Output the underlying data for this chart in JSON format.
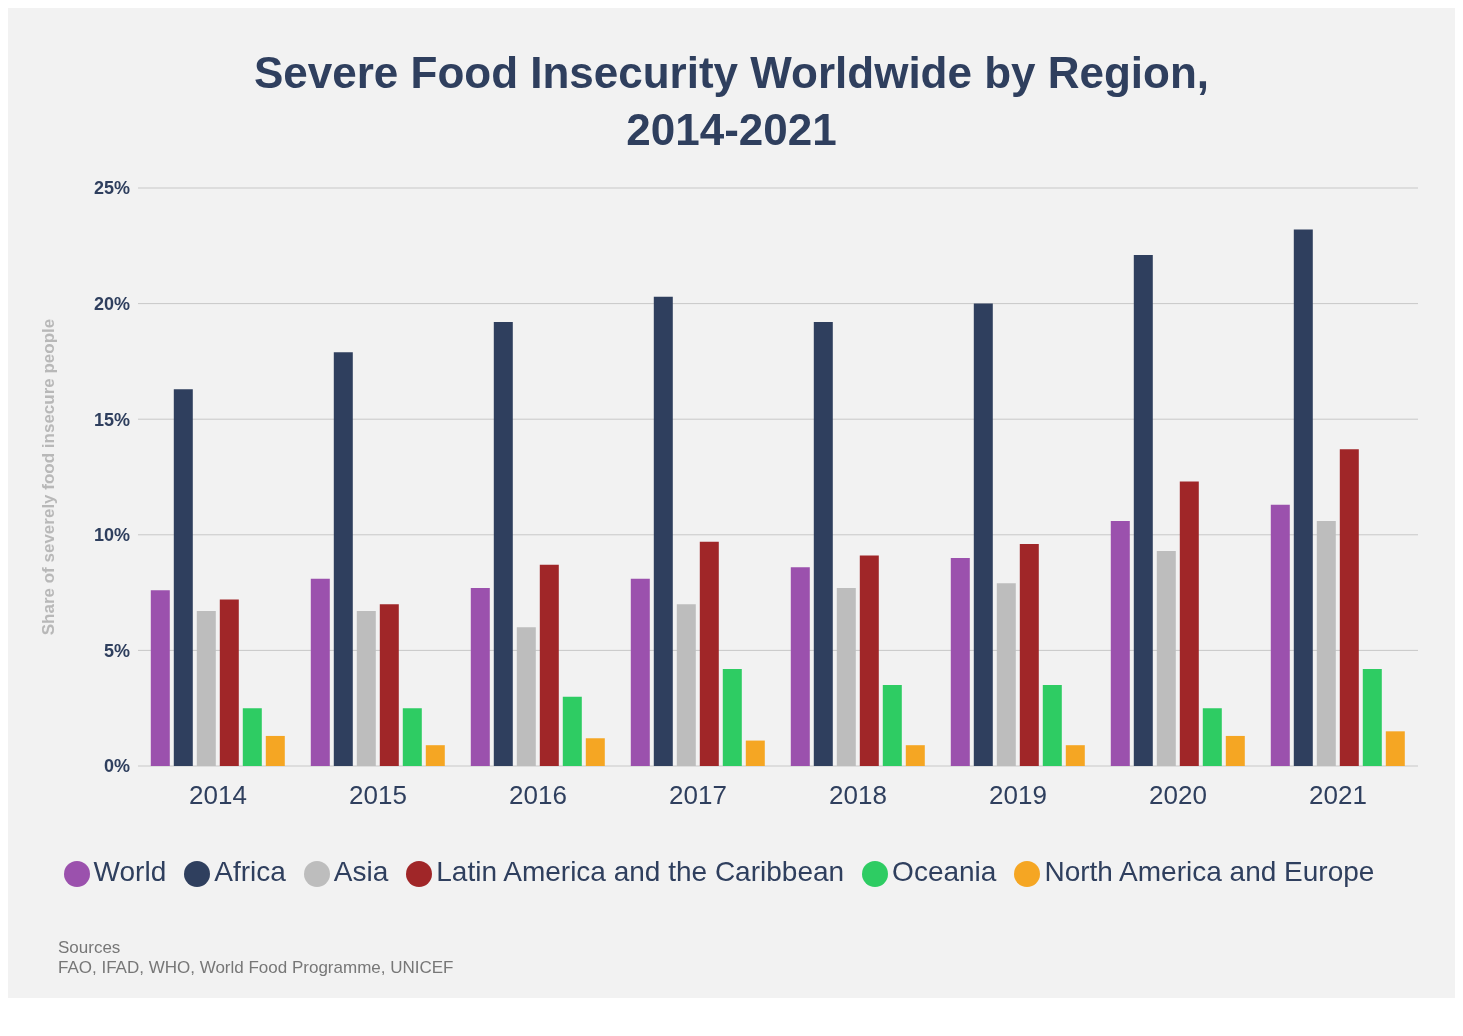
{
  "chart_data": {
    "type": "bar",
    "title": "Severe Food Insecurity Worldwide by Region, 2014-2021",
    "ylabel": "Share of severely food insecure people",
    "categories": [
      "2014",
      "2015",
      "2016",
      "2017",
      "2018",
      "2019",
      "2020",
      "2021"
    ],
    "series": [
      {
        "name": "World",
        "color": "#9b51ad",
        "values": [
          7.6,
          8.1,
          7.7,
          8.1,
          8.6,
          9.0,
          10.6,
          11.3
        ]
      },
      {
        "name": "Africa",
        "color": "#2f3f5e",
        "values": [
          16.3,
          17.9,
          19.2,
          20.3,
          19.2,
          20.0,
          22.1,
          23.2
        ]
      },
      {
        "name": "Asia",
        "color": "#bdbdbd",
        "values": [
          6.7,
          6.7,
          6.0,
          7.0,
          7.7,
          7.9,
          9.3,
          10.6
        ]
      },
      {
        "name": "Latin America and the Caribbean",
        "color": "#a02628",
        "values": [
          7.2,
          7.0,
          8.7,
          9.7,
          9.1,
          9.6,
          12.3,
          13.7
        ]
      },
      {
        "name": "Oceania",
        "color": "#2ecc63",
        "values": [
          2.5,
          2.5,
          3.0,
          4.2,
          3.5,
          3.5,
          2.5,
          4.2
        ]
      },
      {
        "name": "North America and Europe",
        "color": "#f5a623",
        "values": [
          1.3,
          0.9,
          1.2,
          1.1,
          0.9,
          0.9,
          1.3,
          1.5
        ]
      }
    ],
    "ylim": [
      0,
      25
    ],
    "yticks": [
      {
        "value": 0,
        "label": "0%"
      },
      {
        "value": 5,
        "label": "5%"
      },
      {
        "value": 10,
        "label": "10%"
      },
      {
        "value": 15,
        "label": "15%"
      },
      {
        "value": 20,
        "label": "20%"
      },
      {
        "value": 25,
        "label": "25%"
      }
    ],
    "grid": "y",
    "legend": "bottom",
    "annotations": [
      "Sources",
      "FAO, IFAD, WHO, World Food Programme, UNICEF"
    ]
  }
}
